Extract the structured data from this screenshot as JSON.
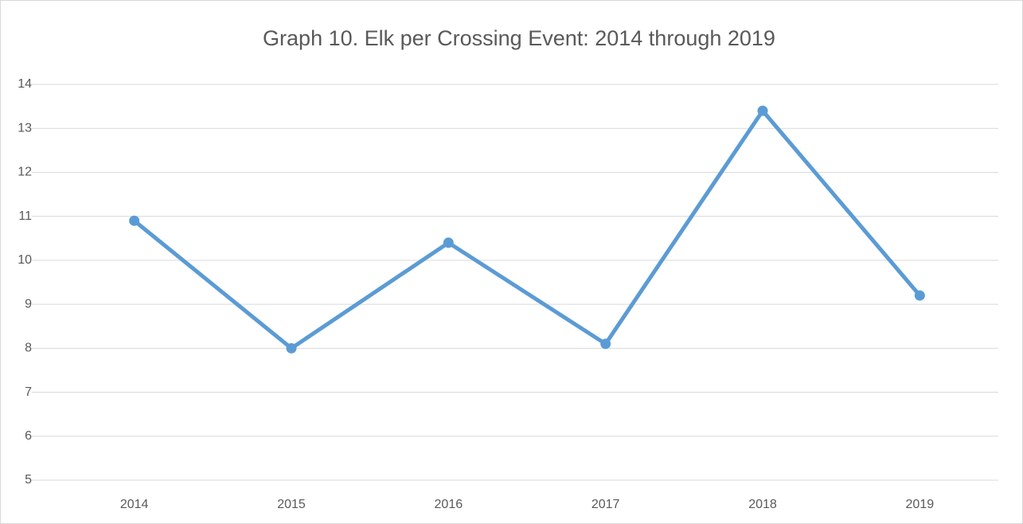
{
  "chart_data": {
    "type": "line",
    "title": "Graph 10. Elk per Crossing Event: 2014 through 2019",
    "categories": [
      "2014",
      "2015",
      "2016",
      "2017",
      "2018",
      "2019"
    ],
    "series": [
      {
        "name": "Elk per Crossing Event",
        "color": "#5b9bd5",
        "values": [
          10.9,
          8.0,
          10.4,
          8.1,
          13.4,
          9.2
        ]
      }
    ],
    "ylim": [
      5,
      14
    ],
    "yticks": [
      5,
      6,
      7,
      8,
      9,
      10,
      11,
      12,
      13,
      14
    ],
    "grid": true
  }
}
